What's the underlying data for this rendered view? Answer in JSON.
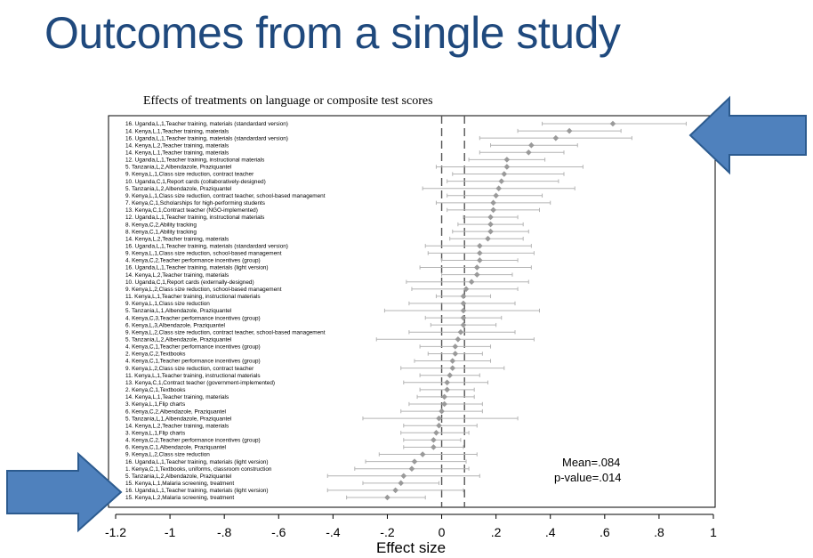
{
  "slide": {
    "title": "Outcomes from a single study"
  },
  "chart_data": {
    "type": "scatter",
    "title": "Effects of treatments on language or composite test scores",
    "xlabel": "Effect size",
    "xlim": [
      -1.2,
      1
    ],
    "x_ticks": [
      "-1.2",
      "-1",
      "-.8",
      "-.6",
      "-.4",
      "-.2",
      "0",
      ".2",
      ".4",
      ".6",
      ".8",
      "1"
    ],
    "x_tick_values": [
      -1.2,
      -1.0,
      -0.8,
      -0.6,
      -0.4,
      -0.2,
      0,
      0.2,
      0.4,
      0.6,
      0.8,
      1.0
    ],
    "reference_lines": [
      0,
      0.084
    ],
    "annotation": {
      "mean": "Mean=.084",
      "pvalue": "p-value=.014"
    },
    "colors": {
      "point": "#9a9a9a",
      "ci": "#b4b4b4",
      "arrow": "#4f81bd",
      "arrow_edge": "#2c5b8f",
      "title": "#1f497d"
    },
    "studies": [
      {
        "label": "16. Uganda,L,1,Teacher training, materials (standardard version)",
        "estimate": 0.63,
        "ci": [
          0.37,
          0.9
        ]
      },
      {
        "label": "14. Kenya,L,1,Teacher training, materials",
        "estimate": 0.47,
        "ci": [
          0.28,
          0.66
        ]
      },
      {
        "label": "16. Uganda,L,1,Teacher training, materials (standardard version)",
        "estimate": 0.42,
        "ci": [
          0.14,
          0.7
        ]
      },
      {
        "label": "14. Kenya,L,2,Teacher training, materials",
        "estimate": 0.33,
        "ci": [
          0.18,
          0.5
        ]
      },
      {
        "label": "14. Kenya,L,1,Teacher training, materials",
        "estimate": 0.32,
        "ci": [
          0.14,
          0.45
        ]
      },
      {
        "label": "12. Uganda,L,1,Teacher training, instructional materials",
        "estimate": 0.24,
        "ci": [
          0.1,
          0.38
        ]
      },
      {
        "label": "5. Tanzania,L,2,Albendazole, Praziquantel",
        "estimate": 0.24,
        "ci": [
          -0.02,
          0.52
        ]
      },
      {
        "label": "9. Kenya,L,1,Class size reduction, contract teacher",
        "estimate": 0.23,
        "ci": [
          0.04,
          0.45
        ]
      },
      {
        "label": "10. Uganda,C,1,Report cards (collaboratively-designed)",
        "estimate": 0.22,
        "ci": [
          0.02,
          0.43
        ]
      },
      {
        "label": "5. Tanzania,L,2,Albendazole, Praziquantel",
        "estimate": 0.21,
        "ci": [
          -0.07,
          0.49
        ]
      },
      {
        "label": "9. Kenya,L,1,Class size reduction, contract teacher, school-based management",
        "estimate": 0.2,
        "ci": [
          0.02,
          0.37
        ]
      },
      {
        "label": "7. Kenya,C,1,Scholarships for high-performing students",
        "estimate": 0.19,
        "ci": [
          -0.02,
          0.4
        ]
      },
      {
        "label": "13. Kenya,C,1,Contract teacher (NGO-implemented)",
        "estimate": 0.19,
        "ci": [
          0.02,
          0.36
        ]
      },
      {
        "label": "12. Uganda,L,1,Teacher training, instructional materials",
        "estimate": 0.18,
        "ci": [
          0.08,
          0.28
        ]
      },
      {
        "label": "8. Kenya,C,2,Ability tracking",
        "estimate": 0.18,
        "ci": [
          0.06,
          0.3
        ]
      },
      {
        "label": "8. Kenya,C,1,Ability tracking",
        "estimate": 0.18,
        "ci": [
          0.04,
          0.32
        ]
      },
      {
        "label": "14. Kenya,L,2,Teacher training, materials",
        "estimate": 0.17,
        "ci": [
          0.03,
          0.3
        ]
      },
      {
        "label": "16. Uganda,L,1,Teacher training, materials (standardard version)",
        "estimate": 0.14,
        "ci": [
          -0.06,
          0.33
        ]
      },
      {
        "label": "9. Kenya,L,1,Class size reduction, school-based management",
        "estimate": 0.14,
        "ci": [
          -0.05,
          0.34
        ]
      },
      {
        "label": "4. Kenya,C,2,Teacher performance incentives (group)",
        "estimate": 0.14,
        "ci": [
          0.0,
          0.28
        ]
      },
      {
        "label": "16. Uganda,L,1,Teacher training, materials (light version)",
        "estimate": 0.13,
        "ci": [
          -0.08,
          0.33
        ]
      },
      {
        "label": "14. Kenya,L,2,Teacher training, materials",
        "estimate": 0.13,
        "ci": [
          0.0,
          0.26
        ]
      },
      {
        "label": "10. Uganda,C,1,Report cards (externally-designed)",
        "estimate": 0.11,
        "ci": [
          -0.13,
          0.32
        ]
      },
      {
        "label": "9. Kenya,L,2,Class size reduction, school-based management",
        "estimate": 0.09,
        "ci": [
          -0.11,
          0.28
        ]
      },
      {
        "label": "11. Kenya,L,1,Teacher training, instructional materials",
        "estimate": 0.08,
        "ci": [
          -0.02,
          0.18
        ]
      },
      {
        "label": "9. Kenya,L,1,Class size reduction",
        "estimate": 0.08,
        "ci": [
          -0.12,
          0.27
        ]
      },
      {
        "label": "5. Tanzania,L,1,Albendazole, Praziquantel",
        "estimate": 0.08,
        "ci": [
          -0.21,
          0.36
        ]
      },
      {
        "label": "4. Kenya,C,3,Teacher performance incentives (group)",
        "estimate": 0.08,
        "ci": [
          -0.06,
          0.22
        ]
      },
      {
        "label": "6. Kenya,L,3,Albendazole, Praziquantel",
        "estimate": 0.08,
        "ci": [
          -0.04,
          0.2
        ]
      },
      {
        "label": "9. Kenya,L,2,Class size reduction, contract teacher, school-based management",
        "estimate": 0.07,
        "ci": [
          -0.12,
          0.27
        ]
      },
      {
        "label": "5. Tanzania,L,2,Albendazole, Praziquantel",
        "estimate": 0.06,
        "ci": [
          -0.24,
          0.34
        ]
      },
      {
        "label": "4. Kenya,C,1,Teacher performance incentives (group)",
        "estimate": 0.05,
        "ci": [
          -0.08,
          0.18
        ]
      },
      {
        "label": "2. Kenya,C,2,Textbooks",
        "estimate": 0.05,
        "ci": [
          -0.05,
          0.15
        ]
      },
      {
        "label": "4. Kenya,C,1,Teacher performance incentives (group)",
        "estimate": 0.04,
        "ci": [
          -0.1,
          0.18
        ]
      },
      {
        "label": "9. Kenya,L,2,Class size reduction, contract teacher",
        "estimate": 0.04,
        "ci": [
          -0.15,
          0.23
        ]
      },
      {
        "label": "11. Kenya,L,1,Teacher training, instructional materials",
        "estimate": 0.03,
        "ci": [
          -0.08,
          0.14
        ]
      },
      {
        "label": "13. Kenya,C,1,Contract teacher (government-implemented)",
        "estimate": 0.02,
        "ci": [
          -0.14,
          0.17
        ]
      },
      {
        "label": "2. Kenya,C,1,Textbooks",
        "estimate": 0.02,
        "ci": [
          -0.08,
          0.12
        ]
      },
      {
        "label": "14. Kenya,L,1,Teacher training, materials",
        "estimate": 0.01,
        "ci": [
          -0.09,
          0.12
        ]
      },
      {
        "label": "3. Kenya,L,1,Flip charts",
        "estimate": 0.01,
        "ci": [
          -0.12,
          0.15
        ]
      },
      {
        "label": "6. Kenya,C,2,Albendazole, Praziquantel",
        "estimate": 0.0,
        "ci": [
          -0.15,
          0.15
        ]
      },
      {
        "label": "5. Tanzania,L,1,Albendazole, Praziquantel",
        "estimate": -0.01,
        "ci": [
          -0.29,
          0.28
        ]
      },
      {
        "label": "14. Kenya,L,2,Teacher training, materials",
        "estimate": -0.01,
        "ci": [
          -0.14,
          0.13
        ]
      },
      {
        "label": "3. Kenya,L,1,Flip charts",
        "estimate": -0.02,
        "ci": [
          -0.15,
          0.1
        ]
      },
      {
        "label": "4. Kenya,C,2,Teacher performance incentives (group)",
        "estimate": -0.03,
        "ci": [
          -0.14,
          0.07
        ]
      },
      {
        "label": "6. Kenya,C,1,Albendazole, Praziquantel",
        "estimate": -0.03,
        "ci": [
          -0.14,
          0.08
        ]
      },
      {
        "label": "9. Kenya,L,2,Class size reduction",
        "estimate": -0.07,
        "ci": [
          -0.23,
          0.13
        ]
      },
      {
        "label": "16. Uganda,L,1,Teacher training, materials (light version)",
        "estimate": -0.1,
        "ci": [
          -0.28,
          0.09
        ]
      },
      {
        "label": "1. Kenya,C,1,Textbooks, uniforms, classroom construction",
        "estimate": -0.11,
        "ci": [
          -0.32,
          0.1
        ]
      },
      {
        "label": "5. Tanzania,L,2,Albendazole, Praziquantel",
        "estimate": -0.14,
        "ci": [
          -0.42,
          0.14
        ]
      },
      {
        "label": "15. Kenya,L,1,Malaria screening, treatment",
        "estimate": -0.15,
        "ci": [
          -0.29,
          -0.01
        ]
      },
      {
        "label": "16. Uganda,L,1,Teacher training, materials (light version)",
        "estimate": -0.17,
        "ci": [
          -0.42,
          0.08
        ]
      },
      {
        "label": "15. Kenya,L,2,Malaria screening, treatment",
        "estimate": -0.2,
        "ci": [
          -0.35,
          -0.06
        ]
      }
    ]
  }
}
